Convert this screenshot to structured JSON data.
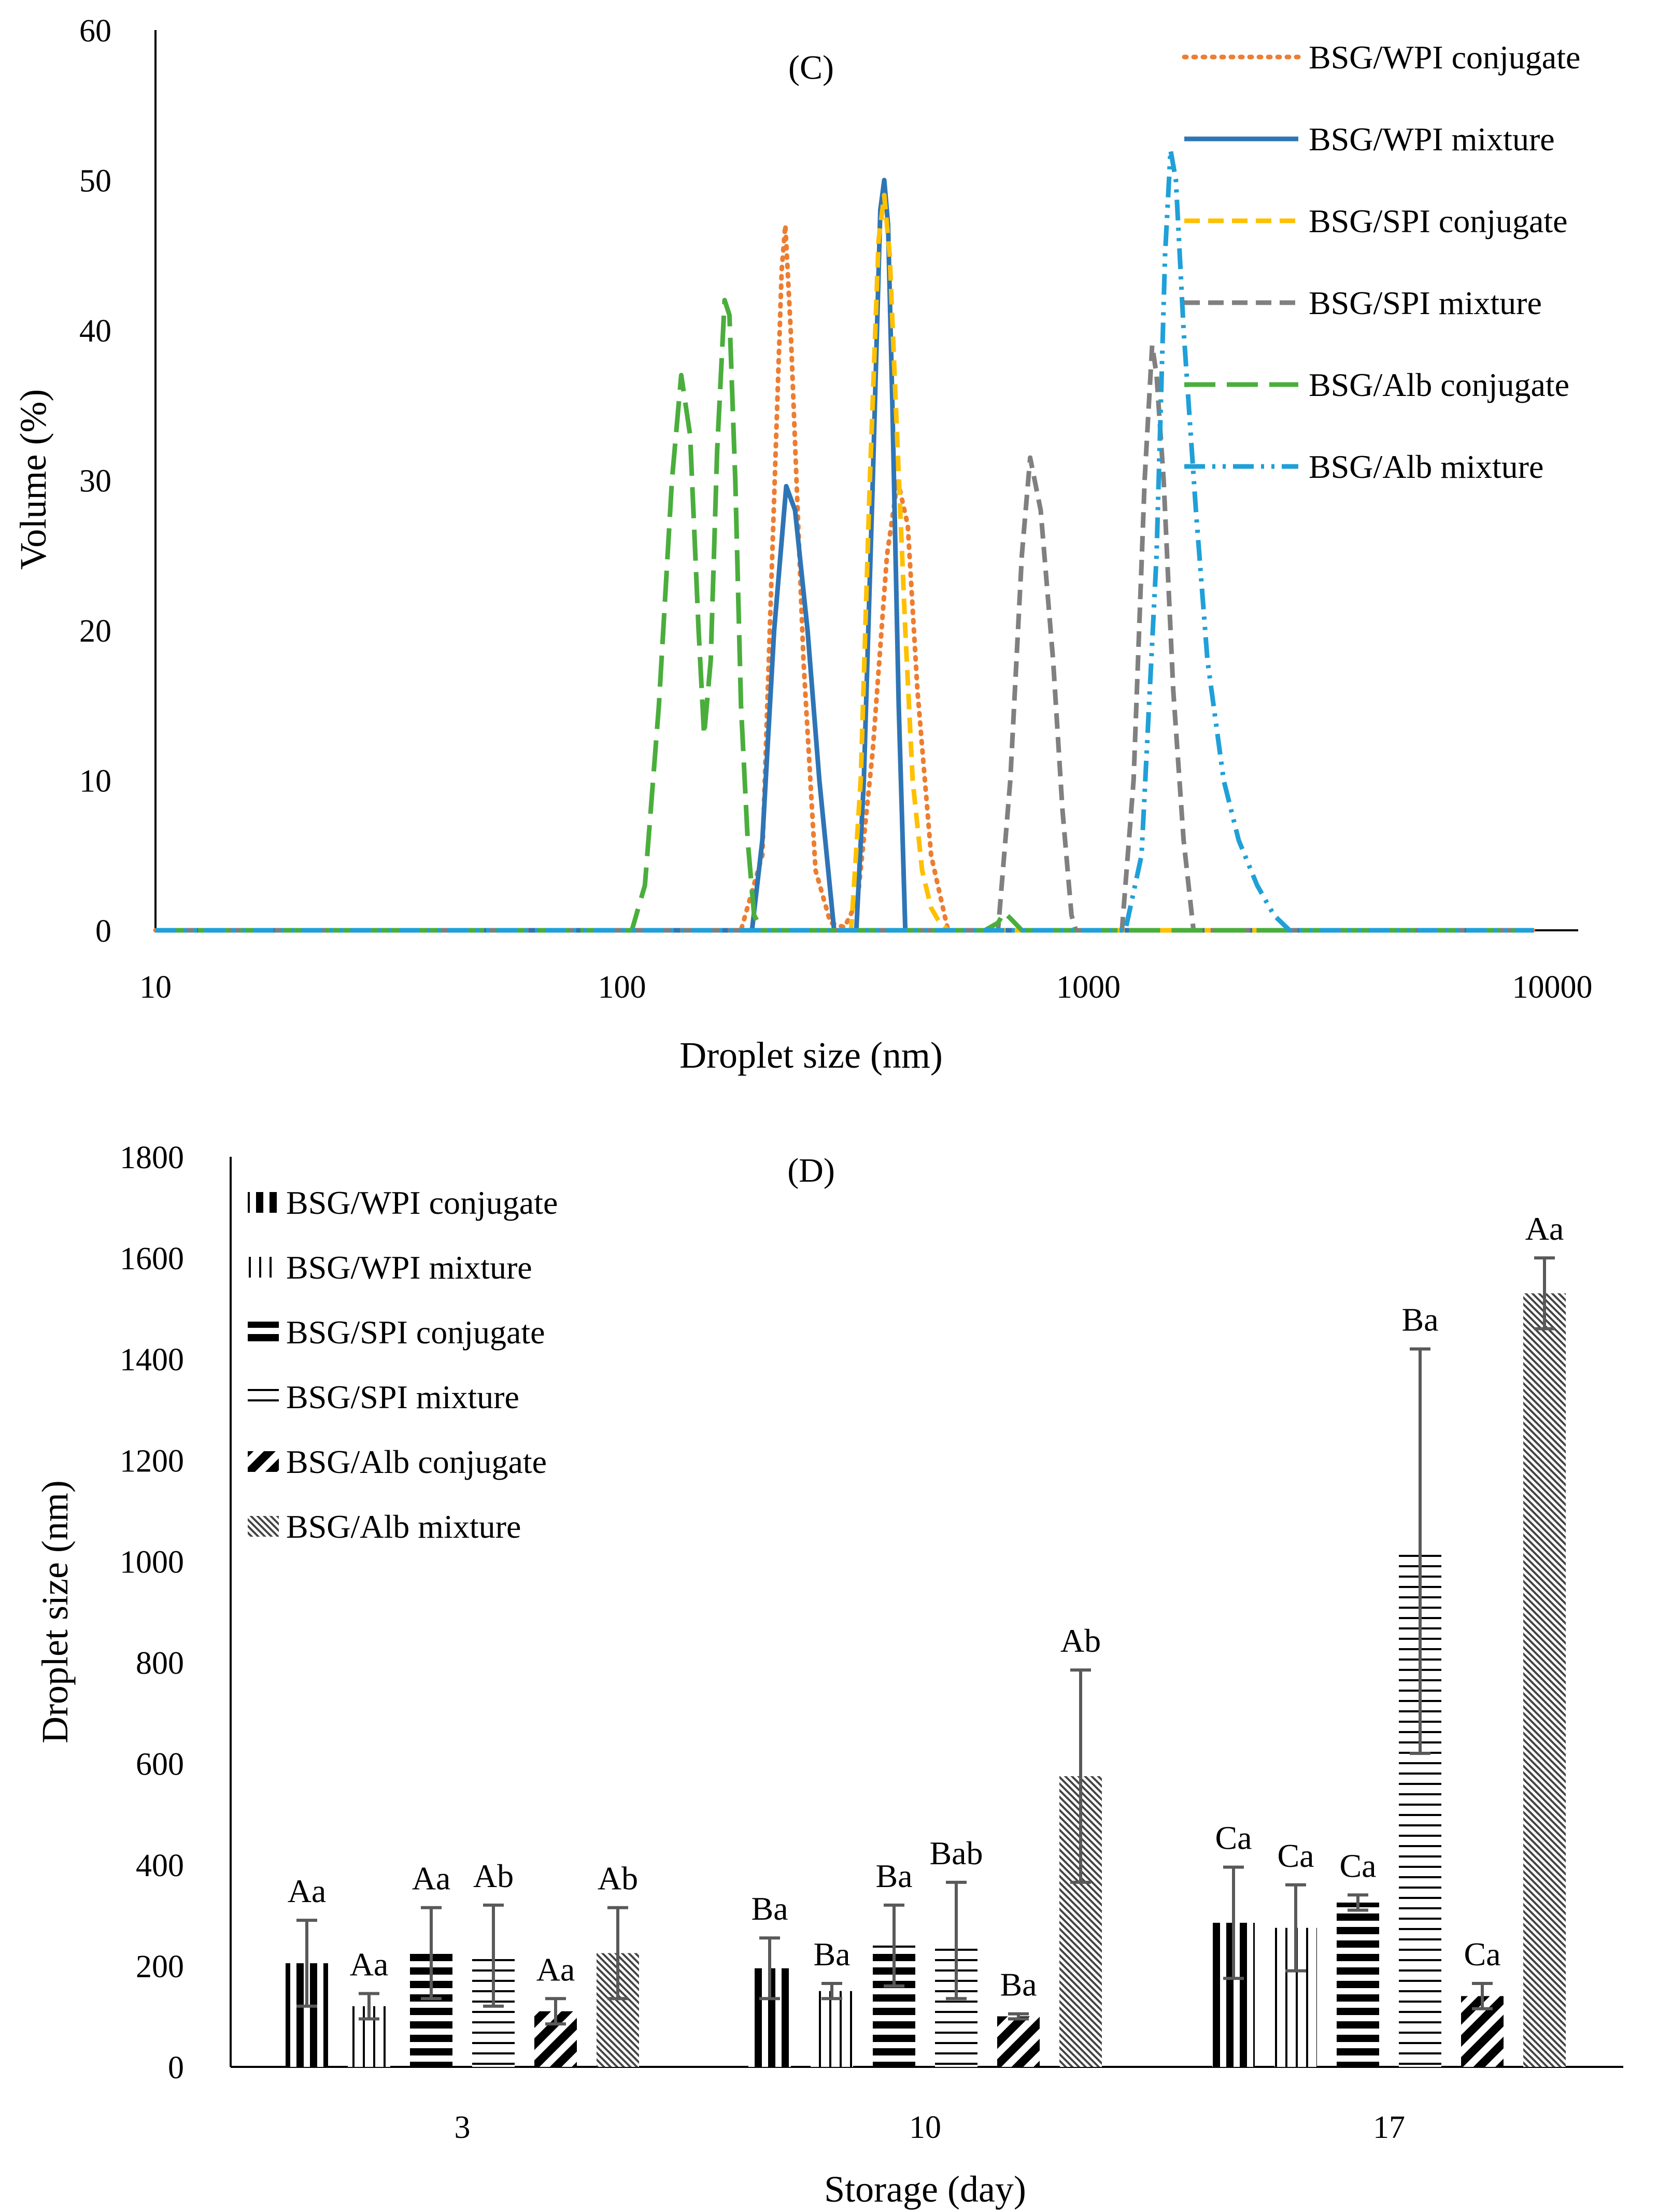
{
  "colors": {
    "axis": "#000000",
    "orange": "#ED7D31",
    "blue": "#2E75B6",
    "yellow": "#FFC000",
    "gray": "#808080",
    "green": "#4AAE3C",
    "lightblue": "#1FA0D8",
    "errorbar": "#595959"
  },
  "chart_data": [
    {
      "type": "line",
      "panel_label": "(C)",
      "title": "(C)",
      "xlabel": "Droplet size (nm)",
      "ylabel": "Volume (%)",
      "xscale": "log",
      "xlim": [
        10,
        10000
      ],
      "ylim": [
        0,
        60
      ],
      "xticks": [
        "10",
        "100",
        "1000",
        "10000"
      ],
      "yticks": [
        "0",
        "10",
        "20",
        "30",
        "40",
        "50",
        "60"
      ],
      "legend_position": "top-right",
      "series": [
        {
          "name": "BSG/WPI conjugate",
          "color_key": "orange",
          "style": "dotted",
          "x": [
            10,
            180,
            200,
            210,
            220,
            224,
            230,
            245,
            260,
            280,
            300,
            320,
            345,
            370,
            390,
            410,
            430,
            460,
            500,
            9000
          ],
          "y": [
            0,
            0,
            5,
            25,
            44,
            47,
            40,
            18,
            4,
            0.5,
            0.2,
            2,
            12,
            25,
            30,
            27,
            16,
            5,
            0,
            0
          ]
        },
        {
          "name": "BSG/WPI mixture",
          "color_key": "blue",
          "style": "solid",
          "x": [
            10,
            190,
            200,
            212,
            225,
            235,
            250,
            265,
            285,
            300,
            318,
            330,
            345,
            358,
            365,
            372,
            380,
            392,
            405,
            9000
          ],
          "y": [
            0,
            0,
            6,
            20,
            29.6,
            28,
            20,
            10,
            0,
            0,
            0,
            10,
            30,
            48,
            50,
            47,
            35,
            15,
            0,
            0
          ]
        },
        {
          "name": "BSG/SPI conjugate",
          "color_key": "yellow",
          "style": "dashed",
          "x": [
            10,
            310,
            325,
            340,
            355,
            365,
            375,
            390,
            405,
            420,
            440,
            460,
            480,
            500,
            9000
          ],
          "y": [
            0,
            0,
            10,
            30,
            46,
            49,
            45,
            32,
            20,
            10,
            4,
            1.5,
            0.5,
            0,
            0
          ]
        },
        {
          "name": "BSG/SPI mixture",
          "color_key": "gray",
          "style": "dashed",
          "x": [
            10,
            640,
            680,
            720,
            750,
            790,
            840,
            880,
            920,
            940,
            1180,
            1250,
            1320,
            1370,
            1400,
            1450,
            1520,
            1600,
            1680,
            9000
          ],
          "y": [
            0,
            0,
            10,
            25,
            31.5,
            28,
            18,
            8,
            1,
            0,
            0,
            10,
            30,
            39,
            37,
            30,
            16,
            6,
            0,
            0
          ]
        },
        {
          "name": "BSG/Alb conjugate",
          "color_key": "green",
          "style": "longdash",
          "x": [
            10,
            105,
            112,
            120,
            128,
            134,
            140,
            146,
            150,
            155,
            160,
            166,
            170,
            175,
            180,
            186,
            192,
            200,
            600,
            640,
            660,
            680,
            720,
            900,
            9000
          ],
          "y": [
            0,
            0,
            3,
            15,
            30,
            37,
            33,
            20,
            13,
            18,
            32,
            42,
            41,
            30,
            15,
            6,
            1,
            0,
            0,
            0.5,
            1.2,
            0.8,
            0,
            0,
            0
          ]
        },
        {
          "name": "BSG/Alb mixture",
          "color_key": "lightblue",
          "style": "dashdotdot",
          "x": [
            10,
            1200,
            1300,
            1400,
            1460,
            1500,
            1540,
            1600,
            1700,
            1800,
            1950,
            2100,
            2300,
            2500,
            2700,
            9000
          ],
          "y": [
            0,
            0,
            5,
            25,
            45,
            52,
            50,
            40,
            28,
            18,
            10,
            6,
            3,
            1,
            0,
            0
          ]
        }
      ]
    },
    {
      "type": "bar",
      "panel_label": "(D)",
      "title": "(D)",
      "xlabel": "Storage (day)",
      "ylabel": "Droplet size (nm)",
      "ylim": [
        0,
        1800
      ],
      "yticks": [
        "0",
        "200",
        "400",
        "600",
        "800",
        "1000",
        "1200",
        "1400",
        "1600",
        "1800"
      ],
      "categories": [
        "3",
        "10",
        "17"
      ],
      "legend_position": "top-left",
      "series": [
        {
          "name": "BSG/WPI conjugate",
          "pattern": "thick-vertical",
          "values": [
            205,
            195,
            285
          ],
          "errors": [
            85,
            60,
            110
          ],
          "labels": [
            "Aa",
            "Ba",
            "Ca"
          ]
        },
        {
          "name": "BSG/WPI mixture",
          "pattern": "thin-vertical",
          "values": [
            120,
            150,
            275
          ],
          "errors": [
            25,
            15,
            85
          ],
          "labels": [
            "Aa",
            "Ba",
            "Ca"
          ]
        },
        {
          "name": "BSG/SPI conjugate",
          "pattern": "thick-horizontal",
          "values": [
            225,
            240,
            325
          ],
          "errors": [
            90,
            80,
            15
          ],
          "labels": [
            "Aa",
            "Ba",
            "Ca"
          ]
        },
        {
          "name": "BSG/SPI mixture",
          "pattern": "thin-horizontal",
          "values": [
            220,
            250,
            1020
          ],
          "errors": [
            100,
            115,
            400
          ],
          "labels": [
            "Ab",
            "Bab",
            "Ba"
          ]
        },
        {
          "name": "BSG/Alb conjugate",
          "pattern": "wide-diagonal",
          "values": [
            110,
            100,
            140
          ],
          "errors": [
            25,
            5,
            25
          ],
          "labels": [
            "Aa",
            "Ba",
            "Ca"
          ]
        },
        {
          "name": "BSG/Alb mixture",
          "pattern": "dense-diagonal",
          "values": [
            225,
            575,
            1530
          ],
          "errors": [
            90,
            210,
            70
          ],
          "labels": [
            "Ab",
            "Ab",
            "Aa"
          ]
        }
      ]
    }
  ]
}
